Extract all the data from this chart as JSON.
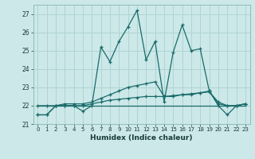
{
  "xlabel": "Humidex (Indice chaleur)",
  "bg_color": "#cce8e8",
  "grid_color": "#b0d4d4",
  "line_color": "#1a6b6b",
  "x_values": [
    0,
    1,
    2,
    3,
    4,
    5,
    6,
    7,
    8,
    9,
    10,
    11,
    12,
    13,
    14,
    15,
    16,
    17,
    18,
    19,
    20,
    21,
    22,
    23
  ],
  "series1": [
    21.5,
    21.5,
    22.0,
    22.0,
    22.0,
    21.7,
    22.0,
    25.2,
    24.4,
    25.5,
    26.3,
    27.2,
    24.5,
    25.5,
    22.2,
    24.9,
    26.4,
    25.0,
    25.1,
    22.8,
    22.0,
    21.5,
    22.0,
    22.1
  ],
  "series2": [
    22.0,
    22.0,
    22.0,
    22.0,
    22.0,
    22.0,
    22.1,
    22.2,
    22.3,
    22.35,
    22.4,
    22.45,
    22.5,
    22.5,
    22.5,
    22.55,
    22.6,
    22.65,
    22.7,
    22.75,
    22.2,
    22.0,
    22.0,
    22.1
  ],
  "series3": [
    22.0,
    22.0,
    22.0,
    22.0,
    22.0,
    22.0,
    22.0,
    22.0,
    22.0,
    22.0,
    22.0,
    22.0,
    22.0,
    22.0,
    22.0,
    22.0,
    22.0,
    22.0,
    22.0,
    22.0,
    22.0,
    22.0,
    22.0,
    22.0
  ],
  "series4": [
    21.5,
    21.5,
    22.0,
    22.1,
    22.1,
    22.1,
    22.2,
    22.4,
    22.6,
    22.8,
    23.0,
    23.1,
    23.2,
    23.3,
    22.5,
    22.5,
    22.6,
    22.6,
    22.7,
    22.8,
    22.1,
    22.0,
    22.0,
    22.1
  ],
  "ylim": [
    21,
    27.5
  ],
  "yticks": [
    21,
    22,
    23,
    24,
    25,
    26,
    27
  ],
  "xlim": [
    -0.5,
    23.5
  ]
}
